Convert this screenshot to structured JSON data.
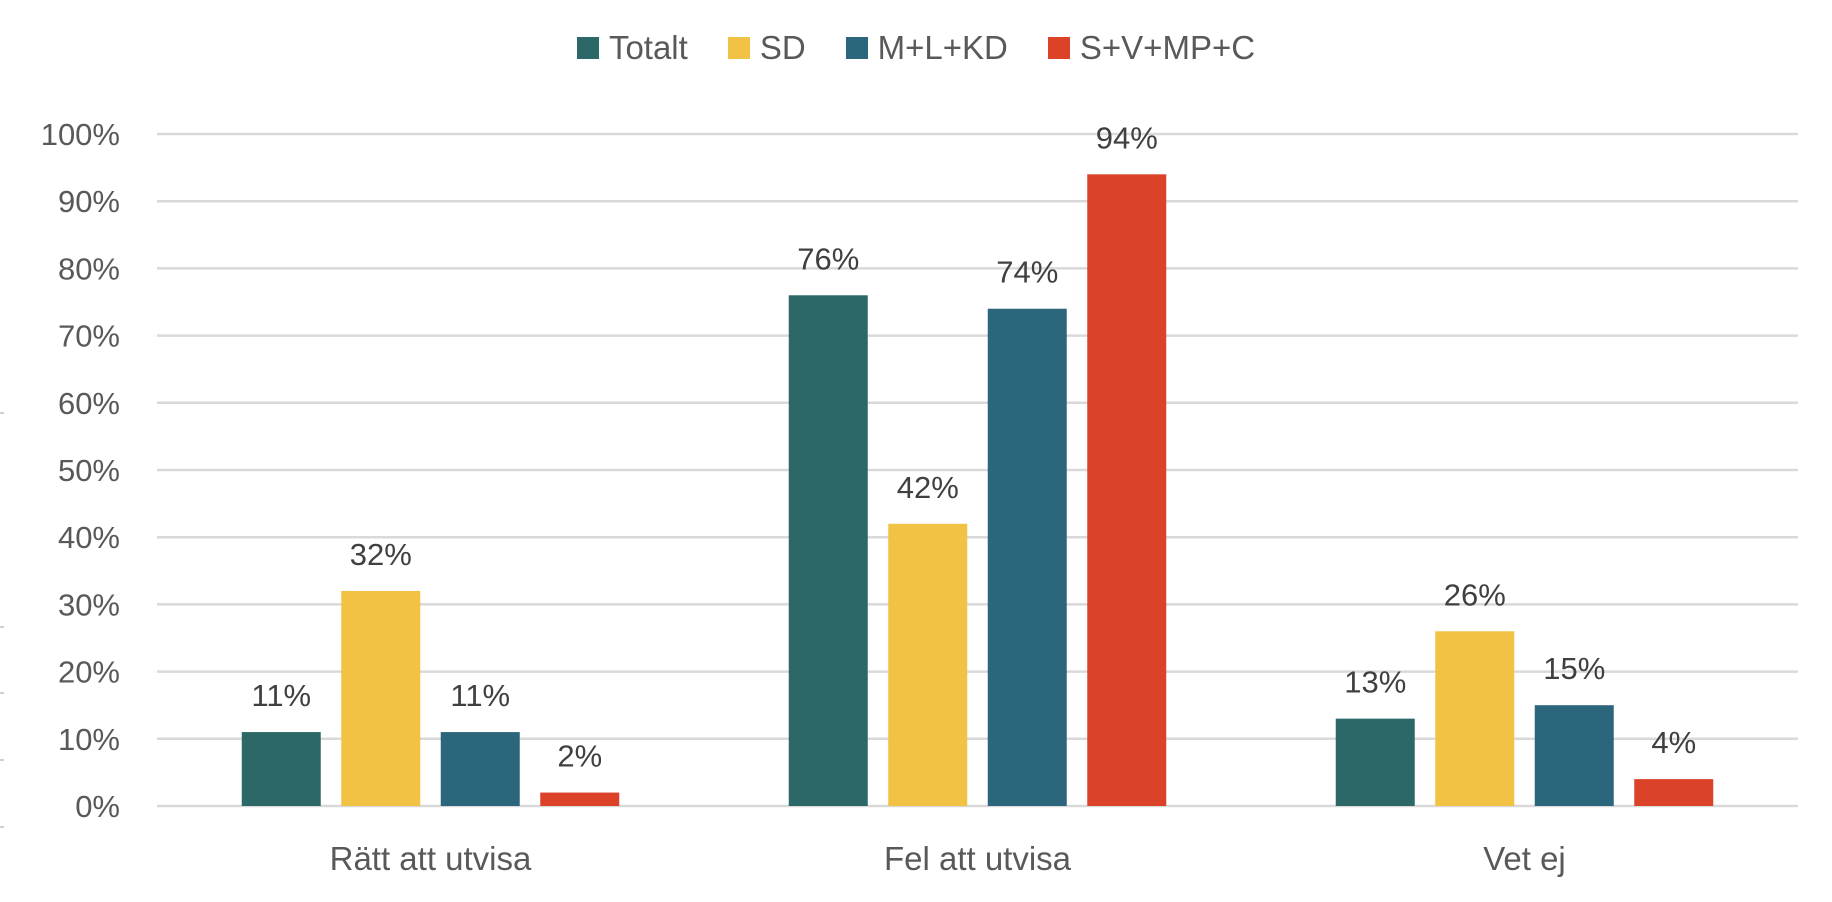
{
  "chart_data": {
    "type": "bar",
    "title": "",
    "xlabel": "",
    "ylabel": "",
    "categories": [
      "Rätt att utvisa",
      "Fel att utvisa",
      "Vet ej"
    ],
    "series": [
      {
        "name": "Totalt",
        "color": "#2B6867",
        "values": [
          11,
          76,
          13
        ],
        "labels": [
          "11%",
          "76%",
          "13%"
        ]
      },
      {
        "name": "SD",
        "color": "#F2C244",
        "values": [
          32,
          42,
          26
        ],
        "labels": [
          "32%",
          "42%",
          "26%"
        ]
      },
      {
        "name": "M+L+KD",
        "color": "#2C667C",
        "values": [
          11,
          74,
          15
        ],
        "labels": [
          "11%",
          "74%",
          "15%"
        ]
      },
      {
        "name": "S+V+MP+C",
        "color": "#DC4227",
        "values": [
          2,
          94,
          4
        ],
        "labels": [
          "2%",
          "94%",
          "4%"
        ]
      }
    ],
    "ylim": [
      0,
      100
    ],
    "yticks": [
      0,
      10,
      20,
      30,
      40,
      50,
      60,
      70,
      80,
      90,
      100
    ],
    "ytick_labels": [
      "0%",
      "10%",
      "20%",
      "30%",
      "40%",
      "50%",
      "60%",
      "70%",
      "80%",
      "90%",
      "100%"
    ],
    "grid": true,
    "legend_position": "top-center",
    "value_unit": "%"
  }
}
